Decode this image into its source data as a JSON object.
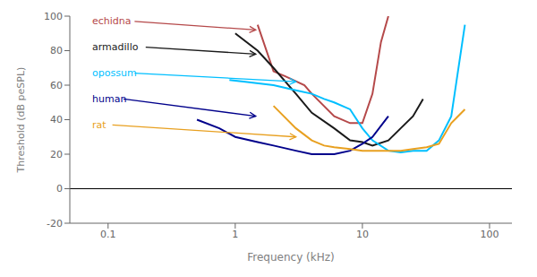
{
  "chart_data": {
    "type": "line",
    "xlabel": "Frequency (kHz)",
    "ylabel": "Threshold (dB peSPL)",
    "log": "x",
    "grid": false,
    "xlim": [
      0.05,
      150
    ],
    "xticks": [
      0.1,
      1,
      10,
      100
    ],
    "ylim": [
      -20,
      100
    ],
    "yticks": [
      -20,
      0,
      20,
      40,
      60,
      80,
      100
    ],
    "reference_line": 0,
    "series": [
      {
        "color": "#b5494a",
        "x": [
          1.5,
          2.0,
          2.5,
          3.5,
          4.0,
          6.0,
          8.0,
          10.0,
          12.0,
          14.0,
          16.0
        ],
        "values": [
          95,
          68,
          65,
          60,
          55,
          42,
          38,
          38,
          55,
          85,
          100
        ]
      },
      {
        "color": "#1a1a1a",
        "x": [
          1.0,
          1.5,
          2.0,
          3.0,
          4.0,
          6.0,
          8.0,
          10.0,
          12.0,
          16.0,
          20.0,
          25.0,
          30.0
        ],
        "values": [
          90,
          80,
          70,
          55,
          44,
          35,
          28,
          27,
          25,
          28,
          35,
          42,
          52
        ]
      },
      {
        "color": "#00bfff",
        "x": [
          0.9,
          1.2,
          2.0,
          3.0,
          4.0,
          5.0,
          6.0,
          8.0,
          10.0,
          12.0,
          16.0,
          20.0,
          25.0,
          32.0,
          40.0,
          50.0,
          64.0
        ],
        "values": [
          63,
          62,
          60,
          57,
          55,
          52,
          50,
          46,
          35,
          28,
          22,
          21,
          22,
          22,
          28,
          42,
          95
        ]
      },
      {
        "color": "#00008b",
        "x": [
          0.5,
          0.75,
          1.0,
          1.5,
          2.0,
          3.0,
          4.0,
          6.0,
          8.0,
          10.0,
          12.0,
          16.0
        ],
        "values": [
          40,
          35,
          30,
          27,
          25,
          22,
          20,
          20,
          22,
          26,
          30,
          42
        ]
      },
      {
        "color": "#e8a020",
        "x": [
          2.0,
          3.0,
          4.0,
          5.0,
          6.0,
          8.0,
          10.0,
          12.0,
          16.0,
          20.0,
          25.0,
          32.0,
          40.0,
          50.0,
          64.0
        ],
        "values": [
          48,
          35,
          28,
          25,
          24,
          23,
          22,
          22,
          22,
          22,
          23,
          24,
          26,
          38,
          46
        ]
      }
    ],
    "annotations": [
      {
        "label": "echidna",
        "color": "#b5494a",
        "text_x": 0.075,
        "text_y": 97,
        "x": 1.45,
        "y": 92
      },
      {
        "label": "armadillo",
        "color": "#1a1a1a",
        "text_x": 0.075,
        "text_y": 82,
        "x": 1.45,
        "y": 78
      },
      {
        "label": "opossum",
        "color": "#00bfff",
        "text_x": 0.075,
        "text_y": 67,
        "x": 3.0,
        "y": 62
      },
      {
        "label": "human",
        "color": "#00008b",
        "text_x": 0.075,
        "text_y": 52,
        "x": 1.45,
        "y": 42
      },
      {
        "label": "rat",
        "color": "#e8a020",
        "text_x": 0.075,
        "text_y": 37,
        "x": 3.0,
        "y": 30
      }
    ]
  }
}
